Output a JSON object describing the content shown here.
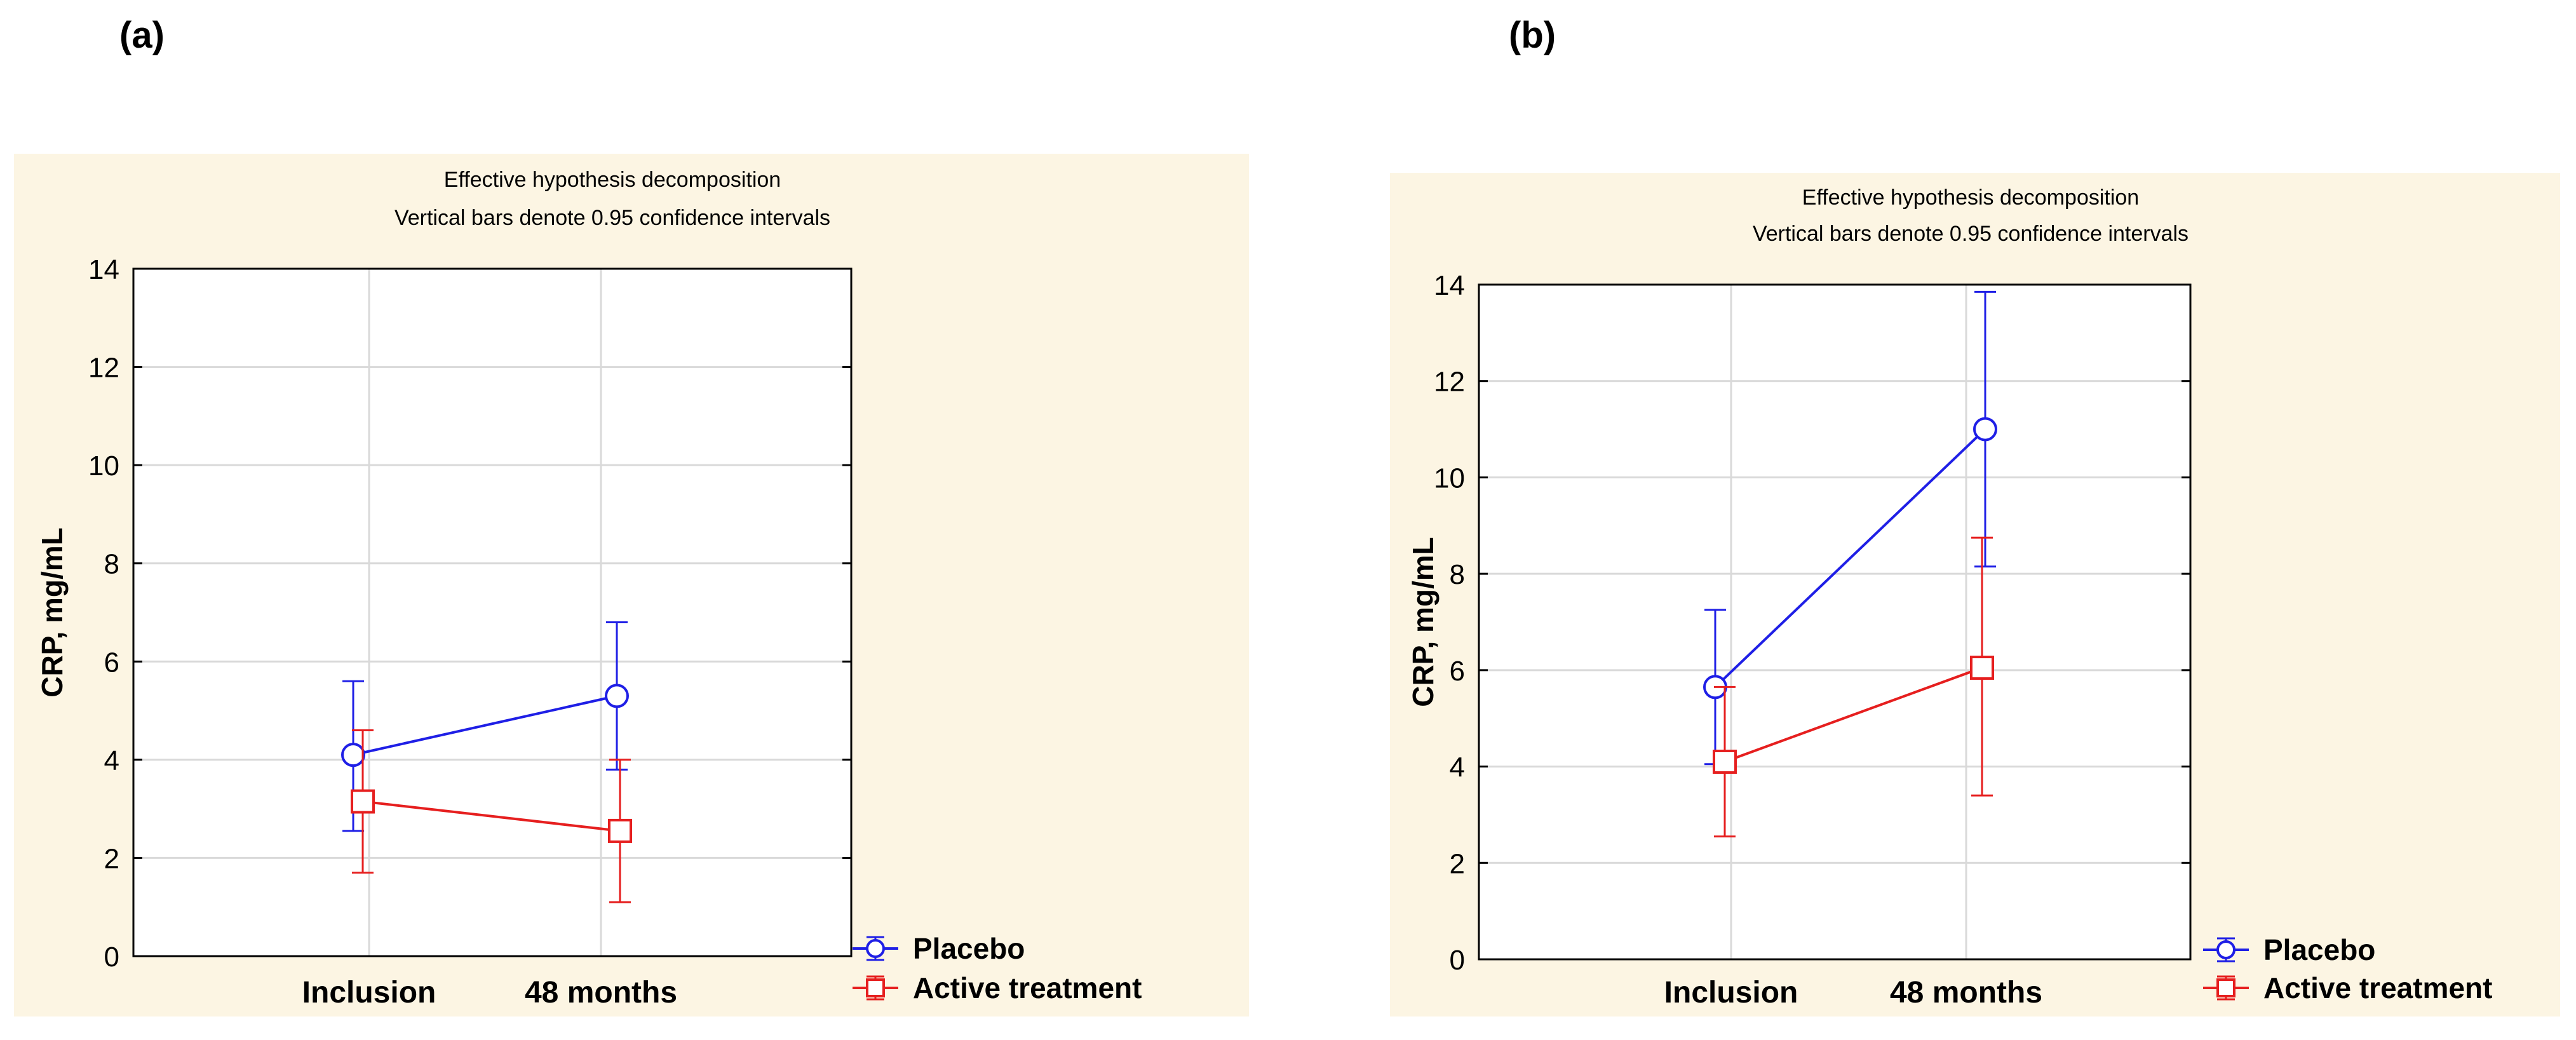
{
  "panels": [
    {
      "label": "(a)"
    },
    {
      "label": "(b)"
    }
  ],
  "chart_data": [
    {
      "type": "line",
      "title": "Effective hypothesis decomposition",
      "subtitle": "Vertical bars denote 0.95 confidence intervals",
      "xlabel": "",
      "ylabel": "CRP, mg/mL",
      "ylim": [
        0,
        14
      ],
      "yticks": [
        0,
        2,
        4,
        6,
        8,
        10,
        12,
        14
      ],
      "categories": [
        "Inclusion",
        "48 months"
      ],
      "grid": true,
      "legend_position": "bottom-right-outside",
      "series": [
        {
          "name": "Placebo",
          "color": "#1f1fe6",
          "marker": "circle",
          "values": [
            4.1,
            5.3
          ],
          "ci_low": [
            2.55,
            3.8
          ],
          "ci_high": [
            5.6,
            6.8
          ]
        },
        {
          "name": "Active treatment",
          "color": "#e61f1f",
          "marker": "square",
          "values": [
            3.15,
            2.55
          ],
          "ci_low": [
            1.7,
            1.1
          ],
          "ci_high": [
            4.6,
            4.0
          ]
        }
      ]
    },
    {
      "type": "line",
      "title": "Effective hypothesis decomposition",
      "subtitle": "Vertical bars denote 0.95 confidence intervals",
      "xlabel": "",
      "ylabel": "CRP, mg/mL",
      "ylim": [
        0,
        14
      ],
      "yticks": [
        0,
        2,
        4,
        6,
        8,
        10,
        12,
        14
      ],
      "categories": [
        "Inclusion",
        "48 months"
      ],
      "grid": true,
      "legend_position": "bottom-right-outside",
      "series": [
        {
          "name": "Placebo",
          "color": "#1f1fe6",
          "marker": "circle",
          "values": [
            5.65,
            11.0
          ],
          "ci_low": [
            4.05,
            8.15
          ],
          "ci_high": [
            7.25,
            13.85
          ]
        },
        {
          "name": "Active treatment",
          "color": "#e61f1f",
          "marker": "square",
          "values": [
            4.1,
            6.05
          ],
          "ci_low": [
            2.55,
            3.4
          ],
          "ci_high": [
            5.65,
            8.75
          ]
        }
      ]
    }
  ]
}
